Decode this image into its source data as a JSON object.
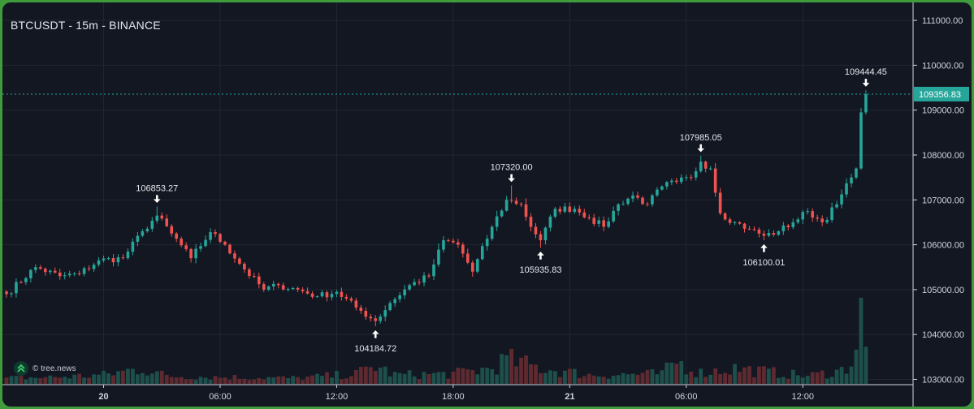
{
  "chart_title": "BTCUSDT - 15m - BINANCE",
  "watermark": "© tree.news",
  "colors": {
    "background": "#131722",
    "frame": "#3f9b3c",
    "grid": "#222633",
    "up": "#26a69a",
    "down": "#ef5350",
    "price_line": "#26a69a",
    "axis_text": "#d1d4dc"
  },
  "chart_data": {
    "type": "candlestick",
    "title": "BTCUSDT - 15m - BINANCE",
    "ylim": [
      102900,
      111400
    ],
    "y_ticks": [
      "111000.00",
      "110000.00",
      "109000.00",
      "108000.00",
      "107000.00",
      "106000.00",
      "105000.00",
      "104000.00",
      "103000.00"
    ],
    "x_ticks": [
      {
        "label": "20",
        "bold": true,
        "bar": 20
      },
      {
        "label": "06:00",
        "bold": false,
        "bar": 44
      },
      {
        "label": "12:00",
        "bold": false,
        "bar": 68
      },
      {
        "label": "18:00",
        "bold": false,
        "bar": 92
      },
      {
        "label": "21",
        "bold": true,
        "bar": 116
      },
      {
        "label": "06:00",
        "bold": false,
        "bar": 140
      },
      {
        "label": "12:00",
        "bold": false,
        "bar": 164
      }
    ],
    "last_price": "109356.83",
    "annotations": [
      {
        "label": "106853.27",
        "price": 106853.27,
        "bar": 31,
        "kind": "high"
      },
      {
        "label": "104184.72",
        "price": 104184.72,
        "bar": 76,
        "kind": "low"
      },
      {
        "label": "107320.00",
        "price": 107320.0,
        "bar": 104,
        "kind": "high"
      },
      {
        "label": "105935.83",
        "price": 105935.83,
        "bar": 110,
        "kind": "low"
      },
      {
        "label": "107985.05",
        "price": 107985.05,
        "bar": 143,
        "kind": "high"
      },
      {
        "label": "106100.01",
        "price": 106100.01,
        "bar": 156,
        "kind": "low"
      },
      {
        "label": "109444.45",
        "price": 109444.45,
        "bar": 177,
        "kind": "high"
      }
    ],
    "anchors": [
      [
        0,
        104900
      ],
      [
        6,
        105500
      ],
      [
        11,
        105300
      ],
      [
        15,
        105350
      ],
      [
        19,
        105650
      ],
      [
        24,
        105700
      ],
      [
        28,
        106300
      ],
      [
        31,
        106650
      ],
      [
        34,
        106250
      ],
      [
        38,
        105700
      ],
      [
        42,
        106280
      ],
      [
        45,
        106000
      ],
      [
        49,
        105450
      ],
      [
        53,
        105000
      ],
      [
        56,
        105100
      ],
      [
        60,
        105000
      ],
      [
        64,
        104850
      ],
      [
        68,
        104950
      ],
      [
        72,
        104600
      ],
      [
        76,
        104300
      ],
      [
        79,
        104700
      ],
      [
        83,
        105100
      ],
      [
        87,
        105300
      ],
      [
        90,
        106100
      ],
      [
        93,
        106000
      ],
      [
        96,
        105400
      ],
      [
        100,
        106400
      ],
      [
        103,
        107000
      ],
      [
        106,
        106900
      ],
      [
        108,
        106400
      ],
      [
        110,
        106100
      ],
      [
        113,
        106800
      ],
      [
        117,
        106800
      ],
      [
        120,
        106600
      ],
      [
        123,
        106400
      ],
      [
        126,
        106900
      ],
      [
        129,
        107100
      ],
      [
        132,
        106900
      ],
      [
        135,
        107300
      ],
      [
        138,
        107400
      ],
      [
        141,
        107500
      ],
      [
        143,
        107850
      ],
      [
        145,
        107700
      ],
      [
        147,
        106700
      ],
      [
        150,
        106500
      ],
      [
        153,
        106350
      ],
      [
        156,
        106200
      ],
      [
        159,
        106300
      ],
      [
        162,
        106500
      ],
      [
        165,
        106750
      ],
      [
        168,
        106500
      ],
      [
        171,
        106900
      ],
      [
        174,
        107500
      ],
      [
        175,
        107700
      ],
      [
        176,
        108900
      ],
      [
        177,
        109356.83
      ]
    ],
    "volume_profile": [
      [
        0,
        5
      ],
      [
        10,
        6
      ],
      [
        20,
        8
      ],
      [
        28,
        14
      ],
      [
        33,
        7
      ],
      [
        45,
        6
      ],
      [
        60,
        5
      ],
      [
        72,
        9
      ],
      [
        76,
        16
      ],
      [
        80,
        8
      ],
      [
        92,
        9
      ],
      [
        100,
        14
      ],
      [
        103,
        22
      ],
      [
        110,
        14
      ],
      [
        120,
        8
      ],
      [
        135,
        9
      ],
      [
        138,
        20
      ],
      [
        143,
        10
      ],
      [
        150,
        14
      ],
      [
        156,
        11
      ],
      [
        165,
        7
      ],
      [
        172,
        12
      ],
      [
        174,
        20
      ],
      [
        175,
        34
      ],
      [
        176,
        60
      ],
      [
        177,
        28
      ]
    ]
  }
}
